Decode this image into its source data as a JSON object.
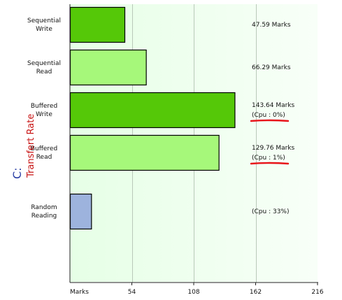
{
  "chart_data": {
    "type": "bar",
    "orientation": "horizontal",
    "drive_label": "C:",
    "ylabel": "Transfert Rate",
    "xlabel": "Marks",
    "xlim": [
      0,
      216
    ],
    "xticks": [
      54,
      108,
      162,
      216
    ],
    "grid": true,
    "categories": [
      [
        "Sequential",
        "Write"
      ],
      [
        "Sequential",
        "Read"
      ],
      [
        "Buffered",
        "Write"
      ],
      [
        "Buffered",
        "Read"
      ],
      [
        "Random",
        "Reading"
      ]
    ],
    "values": [
      47.59,
      66.29,
      143.64,
      129.76,
      18.5
    ],
    "value_labels": [
      [
        "47.59 Marks"
      ],
      [
        "66.29 Marks"
      ],
      [
        "143.64 Marks",
        "(Cpu : 0%)"
      ],
      [
        "129.76 Marks",
        "(Cpu : 1%)"
      ],
      [
        "(Cpu : 33%)"
      ]
    ],
    "bar_colors": [
      "#55c808",
      "#a6f87a",
      "#55c808",
      "#a6f87a",
      "#9db3dd"
    ],
    "colors": {
      "plot_background_left": "#e6ffe6",
      "plot_background_right": "#f8fff8",
      "grid": "#b9c9b9",
      "drive_label": "#2a3fa4",
      "axis_title": "#c81414",
      "underline": "#e8141a"
    },
    "underlined_labels": [
      [
        2,
        1
      ],
      [
        3,
        1
      ]
    ]
  }
}
